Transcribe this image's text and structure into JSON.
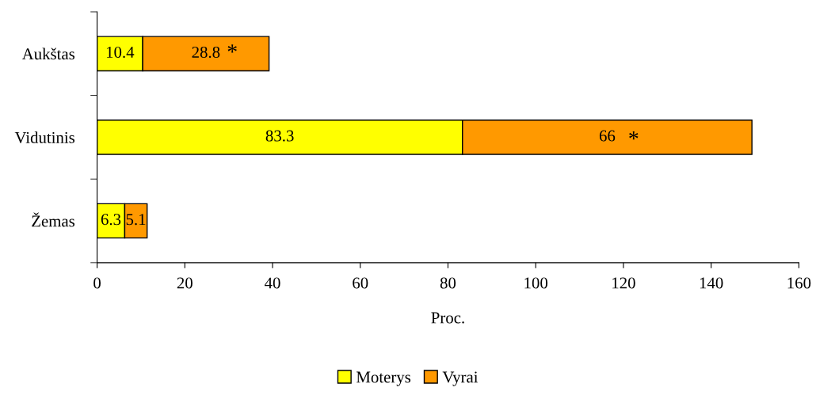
{
  "chart_data": {
    "type": "bar",
    "orientation": "horizontal",
    "stacked": true,
    "xlabel": "Proc.",
    "categories": [
      "Aukštas",
      "Vidutinis",
      "Žemas"
    ],
    "series": [
      {
        "name": "Moterys",
        "color": "#ffff00",
        "values": [
          10.4,
          83.3,
          6.3
        ]
      },
      {
        "name": "Vyrai",
        "color": "#ff9900",
        "values": [
          28.8,
          66,
          5.1
        ]
      }
    ],
    "xlim": [
      0,
      160
    ],
    "xticks": [
      0,
      20,
      40,
      60,
      80,
      100,
      120,
      140,
      160
    ],
    "data_labels": true,
    "grid": false,
    "legend": "bottom",
    "annotations": [
      "*",
      "*"
    ]
  }
}
